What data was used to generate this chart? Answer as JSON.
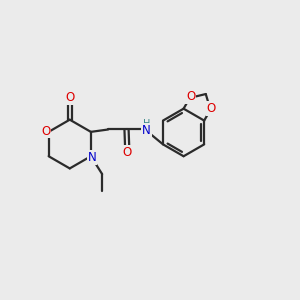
{
  "bg_color": "#ebebeb",
  "bond_color": "#2b2b2b",
  "atom_colors": {
    "O": "#dd0000",
    "N": "#0000cc",
    "NH": "#3a8888",
    "H": "#3a8888"
  },
  "line_width": 1.6,
  "figsize": [
    3.0,
    3.0
  ],
  "dpi": 100
}
